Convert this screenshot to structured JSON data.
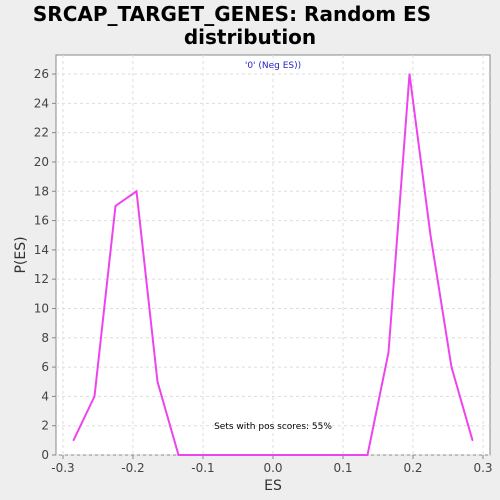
{
  "chart_data": {
    "type": "line",
    "title_lines": [
      "SRCAP_TARGET_GENES: Random ES",
      "distribution"
    ],
    "xlabel": "ES",
    "ylabel": "P(ES)",
    "xlim": [
      -0.31,
      0.31
    ],
    "ylim": [
      0,
      27.3
    ],
    "xticks": [
      -0.3,
      -0.2,
      -0.1,
      0.0,
      0.1,
      0.2,
      0.3
    ],
    "xtick_labels": [
      "-0.3",
      "-0.2",
      "-0.1",
      "0.0",
      "0.1",
      "0.2",
      "0.3"
    ],
    "yticks": [
      0,
      2,
      4,
      6,
      8,
      10,
      12,
      14,
      16,
      18,
      20,
      22,
      24,
      26
    ],
    "ytick_labels": [
      "0",
      "2",
      "4",
      "6",
      "8",
      "10",
      "12",
      "14",
      "16",
      "18",
      "20",
      "22",
      "24",
      "26"
    ],
    "grid": true,
    "series": [
      {
        "color": "#ee44ee",
        "x": [
          -0.285,
          -0.255,
          -0.225,
          -0.195,
          -0.165,
          -0.135,
          0.135,
          0.165,
          0.195,
          0.225,
          0.255,
          0.285
        ],
        "y": [
          1,
          4,
          17,
          18,
          5,
          0,
          0,
          7,
          26,
          15,
          6,
          1
        ]
      }
    ],
    "annotations": {
      "top": "'0' (Neg ES))",
      "bottom": "Sets with pos scores: 55%"
    }
  }
}
